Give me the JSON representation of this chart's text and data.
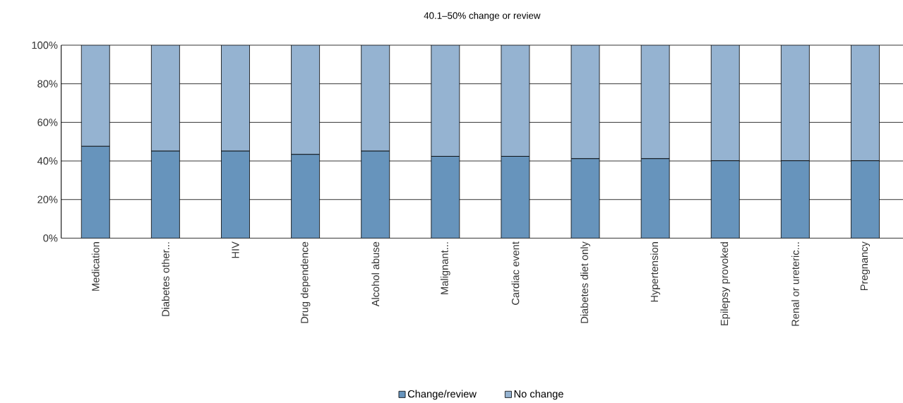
{
  "chart_data": {
    "type": "bar",
    "stacked": true,
    "title": "40.1–50% change or review",
    "categories": [
      "Medication",
      "Diabetes other...",
      "HIV",
      "Drug dependence",
      "Alcohol abuse",
      "Malignant...",
      "Cardiac event",
      "Diabetes diet only",
      "Hypertension",
      "Epilepsy provoked",
      "Renal or ureteric...",
      "Pregnancy"
    ],
    "series": [
      {
        "name": "Change/review",
        "color": "#6794bc",
        "values": [
          47.6,
          45.1,
          45.1,
          43.4,
          45.1,
          42.4,
          42.4,
          41.2,
          41.2,
          40.1,
          40.1,
          40.1
        ]
      },
      {
        "name": "No change",
        "color": "#95b3d1",
        "values": [
          52.4,
          54.9,
          54.9,
          56.6,
          54.9,
          57.6,
          57.6,
          58.8,
          58.8,
          59.9,
          59.9,
          59.9
        ]
      }
    ],
    "ylim": [
      0,
      100
    ],
    "yticks": [
      {
        "value": 0,
        "label": "0%"
      },
      {
        "value": 20,
        "label": "20%"
      },
      {
        "value": 40,
        "label": "40%"
      },
      {
        "value": 60,
        "label": "60%"
      },
      {
        "value": 80,
        "label": "80%"
      },
      {
        "value": 100,
        "label": "100%"
      }
    ],
    "grid": "y",
    "legend": "bottom"
  }
}
